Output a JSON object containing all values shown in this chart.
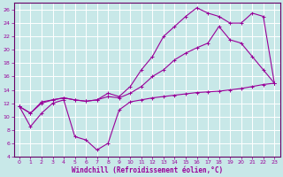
{
  "xlabel": "Windchill (Refroidissement éolien,°C)",
  "background_color": "#c8e8e8",
  "grid_color": "#aad4d4",
  "line_color": "#990099",
  "spine_color": "#660066",
  "xlim": [
    -0.5,
    23.5
  ],
  "ylim": [
    4,
    27
  ],
  "xticks": [
    0,
    1,
    2,
    3,
    4,
    5,
    6,
    7,
    8,
    9,
    10,
    11,
    12,
    13,
    14,
    15,
    16,
    17,
    18,
    19,
    20,
    21,
    22,
    23
  ],
  "yticks": [
    4,
    6,
    8,
    10,
    12,
    14,
    16,
    18,
    20,
    22,
    24,
    26
  ],
  "line1_x": [
    0,
    1,
    2,
    3,
    4,
    5,
    6,
    7,
    8,
    9,
    10,
    11,
    12,
    13,
    14,
    15,
    16,
    17,
    18,
    19,
    20,
    21,
    22,
    23
  ],
  "line1_y": [
    11.5,
    8.5,
    10.5,
    12.0,
    12.5,
    7.0,
    6.5,
    5.0,
    6.0,
    11.0,
    12.2,
    12.5,
    12.8,
    13.0,
    13.2,
    13.4,
    13.6,
    13.7,
    13.8,
    14.0,
    14.2,
    14.5,
    14.8,
    15.0
  ],
  "line2_x": [
    0,
    1,
    2,
    3,
    4,
    5,
    6,
    7,
    8,
    9,
    10,
    11,
    12,
    13,
    14,
    15,
    16,
    17,
    18,
    19,
    20,
    21,
    22,
    23
  ],
  "line2_y": [
    11.5,
    10.5,
    12.2,
    12.5,
    12.8,
    12.5,
    12.3,
    12.5,
    13.0,
    12.8,
    13.5,
    14.5,
    16.0,
    17.0,
    18.5,
    19.5,
    20.3,
    21.0,
    23.5,
    21.5,
    21.0,
    19.0,
    17.0,
    15.0
  ],
  "line3_x": [
    0,
    1,
    2,
    3,
    4,
    5,
    6,
    7,
    8,
    9,
    10,
    11,
    12,
    13,
    14,
    15,
    16,
    17,
    18,
    19,
    20,
    21,
    22,
    23
  ],
  "line3_y": [
    11.5,
    10.5,
    12.0,
    12.5,
    12.8,
    12.5,
    12.3,
    12.5,
    13.5,
    13.0,
    14.5,
    17.0,
    19.0,
    22.0,
    23.5,
    25.0,
    26.3,
    25.5,
    25.0,
    24.0,
    24.0,
    25.5,
    25.0,
    15.0
  ]
}
